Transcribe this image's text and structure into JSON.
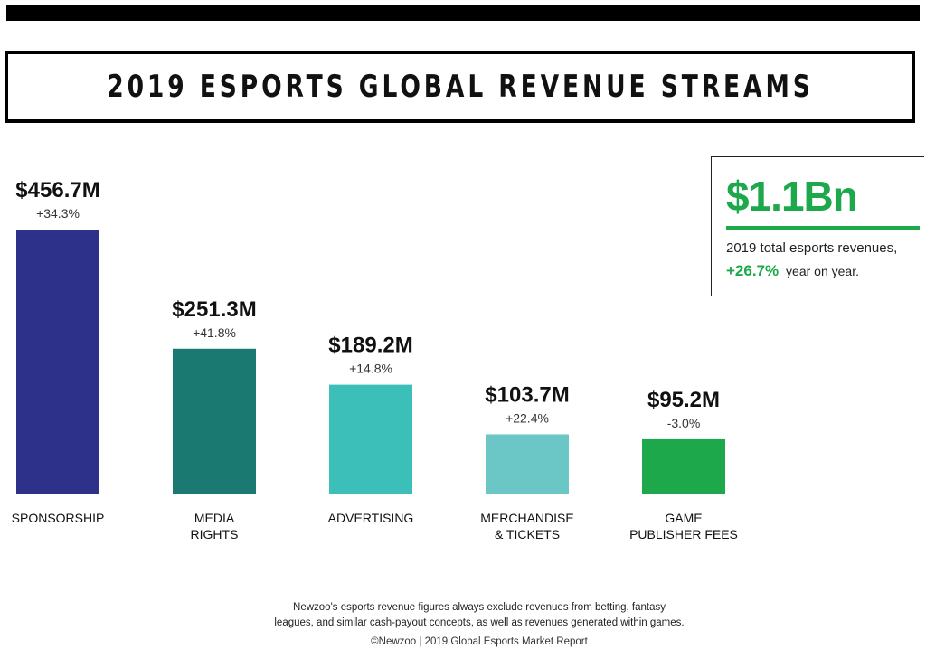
{
  "title": "2019 ESPORTS GLOBAL REVENUE STREAMS",
  "chart_data": {
    "type": "bar",
    "title": "2019 ESPORTS GLOBAL REVENUE STREAMS",
    "unit": "$M",
    "categories": [
      [
        "SPONSORSHIP"
      ],
      [
        "MEDIA",
        "RIGHTS"
      ],
      [
        "ADVERTISING"
      ],
      [
        "MERCHANDISE",
        "& TICKETS"
      ],
      [
        "GAME",
        "PUBLISHER FEES"
      ]
    ],
    "values": [
      456.7,
      251.3,
      189.2,
      103.7,
      95.2
    ],
    "value_labels": [
      "$456.7M",
      "$251.3M",
      "$189.2M",
      "$103.7M",
      "$95.2M"
    ],
    "change_labels": [
      "+34.3%",
      "+41.8%",
      "+14.8%",
      "+22.4%",
      "-3.0%"
    ],
    "colors": [
      "#2e318a",
      "#1a7a72",
      "#3bbfb8",
      "#6ac7c5",
      "#1ea84c"
    ],
    "grid": false,
    "legend": "none"
  },
  "total": {
    "value": "$1.1Bn",
    "description": "2019 total esports revenues,",
    "change": "+26.7%",
    "change_suffix": "year on year."
  },
  "footnote": {
    "line1": "Newzoo's esports revenue figures always exclude revenues from betting, fantasy",
    "line2": "leagues, and similar cash-payout concepts, as well as revenues generated within games."
  },
  "source": "©Newzoo | 2019 Global Esports Market Report"
}
